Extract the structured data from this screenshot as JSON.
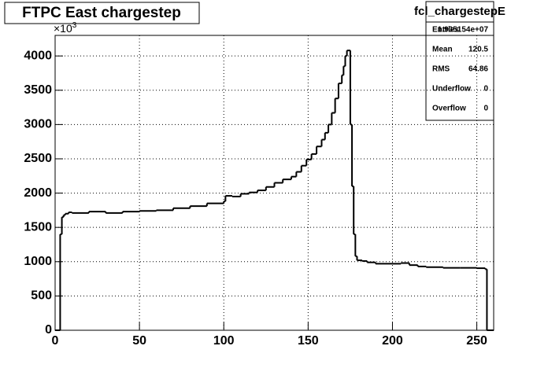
{
  "chart_data": {
    "type": "histogram",
    "title": "FTPC East chargestep",
    "y_multiplier": {
      "base": "×10",
      "exponent": "3"
    },
    "bins": [
      0,
      3,
      4,
      5,
      6,
      8,
      10,
      20,
      30,
      40,
      50,
      60,
      70,
      80,
      90,
      100,
      101,
      105,
      110,
      115,
      120,
      125,
      130,
      135,
      140,
      143,
      146,
      149,
      152,
      155,
      158,
      160,
      162,
      164,
      166,
      168,
      170,
      171,
      172,
      173,
      175,
      176,
      177,
      178,
      179,
      182,
      185,
      190,
      200,
      205,
      210,
      215,
      220,
      230,
      240,
      250,
      255,
      256,
      260
    ],
    "values": [
      0,
      1400,
      1650,
      1680,
      1700,
      1720,
      1710,
      1730,
      1710,
      1730,
      1740,
      1750,
      1780,
      1810,
      1850,
      1880,
      1960,
      1950,
      1990,
      2010,
      2040,
      2090,
      2150,
      2200,
      2240,
      2310,
      2400,
      2490,
      2570,
      2680,
      2780,
      2880,
      3000,
      3170,
      3380,
      3600,
      3720,
      3850,
      4000,
      4080,
      3000,
      2100,
      1400,
      1080,
      1020,
      1010,
      990,
      970,
      970,
      980,
      950,
      930,
      920,
      910,
      910,
      905,
      890,
      0
    ],
    "color": "#000000",
    "xlim": [
      0,
      260
    ],
    "ylim": [
      0,
      4300
    ],
    "xticks": [
      0,
      50,
      100,
      150,
      200,
      250
    ],
    "yticks": [
      0,
      500,
      1000,
      1500,
      2000,
      2500,
      3000,
      3500,
      4000
    ],
    "grid": true
  },
  "stats_box": {
    "name": "fcl_chargestepE",
    "rows": [
      [
        "Entries",
        "1.935154e+07"
      ],
      [
        "Mean",
        "120.5"
      ],
      [
        "RMS",
        "64.86"
      ],
      [
        "Underflow",
        "0"
      ],
      [
        "Overflow",
        "0"
      ]
    ]
  }
}
